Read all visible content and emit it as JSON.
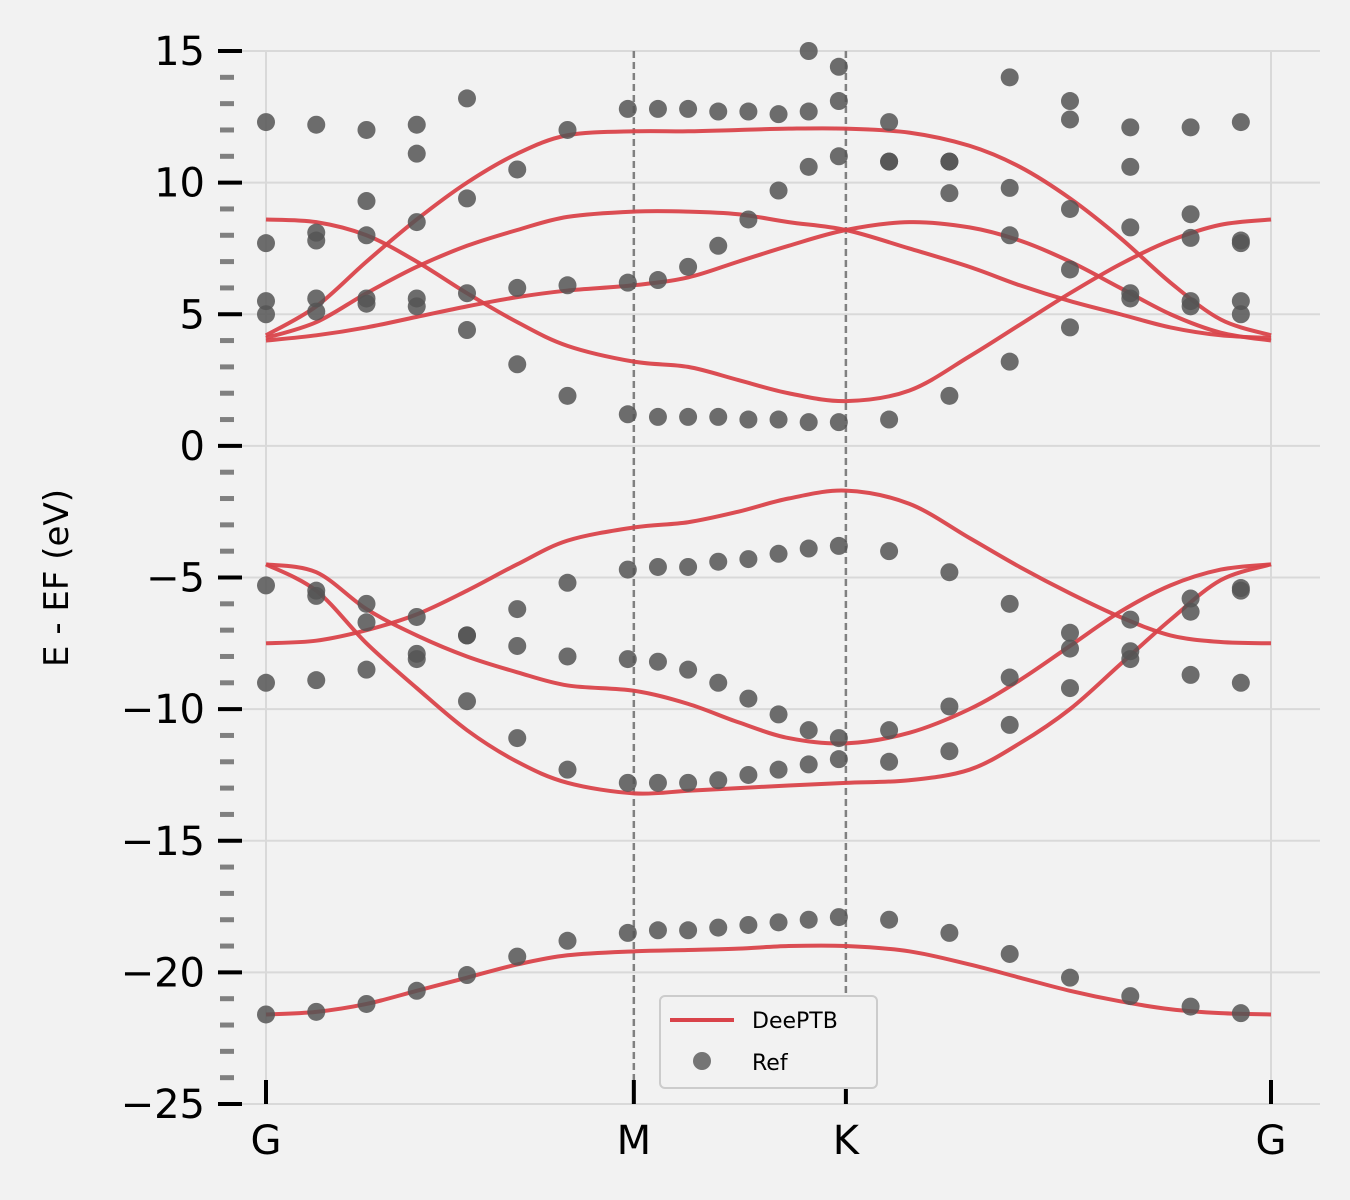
{
  "chart_data": {
    "type": "line",
    "ylabel": "E - EF (eV)",
    "ylim": [
      -25,
      15
    ],
    "yticks": [
      15,
      10,
      5,
      0,
      -5,
      -10,
      -15,
      -20,
      -25
    ],
    "ytick_labels": [
      "15",
      "10",
      "5",
      "0",
      "−5",
      "−10",
      "−15",
      "−20",
      "−25"
    ],
    "xlim": [
      0,
      1
    ],
    "xticks": [
      {
        "label": "G",
        "x": 0.0
      },
      {
        "label": "M",
        "x": 0.366
      },
      {
        "label": "K",
        "x": 0.577
      },
      {
        "label": "G",
        "x": 1.0
      }
    ],
    "high_symmetry_lines_at": [
      0.366,
      0.577
    ],
    "grid": true,
    "legend": {
      "placement": "lower center",
      "entries": [
        "DeePTB",
        "Ref"
      ]
    },
    "colors": {
      "deeptb": "#d9434a",
      "ref": "#555555",
      "background": "#f2f2f2",
      "grid": "#d9d9d9",
      "vline": "#808080"
    },
    "series": [
      {
        "name": "DeePTB",
        "kind": "line",
        "bands": [
          {
            "x": [
              0,
              0.05,
              0.1,
              0.15,
              0.2,
              0.25,
              0.3,
              0.366,
              0.42,
              0.47,
              0.52,
              0.577,
              0.64,
              0.7,
              0.75,
              0.8,
              0.85,
              0.9,
              0.95,
              1.0
            ],
            "y": [
              -21.6,
              -21.5,
              -21.2,
              -20.7,
              -20.2,
              -19.7,
              -19.35,
              -19.2,
              -19.15,
              -19.1,
              -19.0,
              -19.0,
              -19.2,
              -19.7,
              -20.2,
              -20.7,
              -21.1,
              -21.4,
              -21.55,
              -21.6
            ]
          },
          {
            "x": [
              0,
              0.05,
              0.1,
              0.15,
              0.2,
              0.25,
              0.3,
              0.366,
              0.42,
              0.47,
              0.52,
              0.577,
              0.64,
              0.7,
              0.75,
              0.8,
              0.85,
              0.9,
              0.95,
              1.0
            ],
            "y": [
              -4.5,
              -5.5,
              -7.5,
              -9.2,
              -10.8,
              -12.0,
              -12.8,
              -13.2,
              -13.1,
              -13.0,
              -12.9,
              -12.8,
              -12.7,
              -12.3,
              -11.3,
              -10.0,
              -8.3,
              -6.6,
              -5.1,
              -4.5
            ]
          },
          {
            "x": [
              0,
              0.05,
              0.1,
              0.15,
              0.2,
              0.25,
              0.3,
              0.366,
              0.42,
              0.47,
              0.52,
              0.577,
              0.64,
              0.7,
              0.75,
              0.8,
              0.85,
              0.9,
              0.95,
              1.0
            ],
            "y": [
              -4.5,
              -4.8,
              -6.2,
              -7.2,
              -8.0,
              -8.6,
              -9.1,
              -9.3,
              -9.8,
              -10.5,
              -11.1,
              -11.3,
              -10.9,
              -10.0,
              -8.9,
              -7.6,
              -6.3,
              -5.3,
              -4.7,
              -4.5
            ]
          },
          {
            "x": [
              0,
              0.05,
              0.1,
              0.15,
              0.2,
              0.25,
              0.3,
              0.366,
              0.42,
              0.47,
              0.52,
              0.577,
              0.64,
              0.7,
              0.75,
              0.8,
              0.85,
              0.9,
              0.95,
              1.0
            ],
            "y": [
              -7.5,
              -7.4,
              -7.0,
              -6.4,
              -5.5,
              -4.5,
              -3.6,
              -3.1,
              -2.9,
              -2.5,
              -2.0,
              -1.7,
              -2.2,
              -3.5,
              -4.6,
              -5.6,
              -6.5,
              -7.2,
              -7.45,
              -7.5
            ]
          },
          {
            "x": [
              0,
              0.05,
              0.1,
              0.15,
              0.2,
              0.25,
              0.3,
              0.366,
              0.42,
              0.47,
              0.52,
              0.577,
              0.64,
              0.7,
              0.75,
              0.8,
              0.85,
              0.9,
              0.95,
              1.0
            ],
            "y": [
              8.6,
              8.5,
              8.0,
              7.0,
              5.8,
              4.7,
              3.8,
              3.2,
              3.0,
              2.5,
              2.0,
              1.7,
              2.1,
              3.4,
              4.6,
              5.8,
              6.9,
              7.8,
              8.4,
              8.6
            ]
          },
          {
            "x": [
              0,
              0.05,
              0.1,
              0.15,
              0.2,
              0.25,
              0.3,
              0.366,
              0.42,
              0.47,
              0.52,
              0.577,
              0.64,
              0.7,
              0.75,
              0.8,
              0.85,
              0.9,
              0.95,
              1.0
            ],
            "y": [
              4.0,
              4.2,
              4.5,
              4.9,
              5.3,
              5.65,
              5.9,
              6.1,
              6.4,
              7.0,
              7.6,
              8.2,
              8.5,
              8.3,
              7.8,
              7.0,
              6.0,
              5.0,
              4.3,
              4.0
            ]
          },
          {
            "x": [
              0,
              0.05,
              0.1,
              0.15,
              0.2,
              0.25,
              0.3,
              0.366,
              0.42,
              0.47,
              0.52,
              0.577,
              0.64,
              0.7,
              0.75,
              0.8,
              0.85,
              0.9,
              0.95,
              1.0
            ],
            "y": [
              4.1,
              4.7,
              5.8,
              6.8,
              7.6,
              8.2,
              8.7,
              8.9,
              8.9,
              8.8,
              8.5,
              8.2,
              7.5,
              6.8,
              6.1,
              5.5,
              5.0,
              4.5,
              4.2,
              4.1
            ]
          },
          {
            "x": [
              0,
              0.05,
              0.1,
              0.15,
              0.2,
              0.25,
              0.3,
              0.366,
              0.42,
              0.47,
              0.52,
              0.577,
              0.64,
              0.7,
              0.75,
              0.8,
              0.85,
              0.9,
              0.95,
              1.0
            ],
            "y": [
              4.2,
              5.3,
              7.0,
              8.6,
              10.0,
              11.1,
              11.8,
              11.95,
              11.95,
              12.0,
              12.05,
              12.05,
              11.9,
              11.4,
              10.6,
              9.4,
              7.9,
              6.2,
              4.8,
              4.2
            ]
          }
        ]
      },
      {
        "name": "Ref",
        "kind": "scatter",
        "points": [
          [
            0.0,
            -21.6
          ],
          [
            0.05,
            -21.5
          ],
          [
            0.1,
            -21.2
          ],
          [
            0.15,
            -20.7
          ],
          [
            0.2,
            -20.1
          ],
          [
            0.25,
            -19.4
          ],
          [
            0.3,
            -18.8
          ],
          [
            0.36,
            -18.5
          ],
          [
            0.39,
            -18.4
          ],
          [
            0.42,
            -18.4
          ],
          [
            0.45,
            -18.3
          ],
          [
            0.48,
            -18.2
          ],
          [
            0.51,
            -18.1
          ],
          [
            0.54,
            -18.0
          ],
          [
            0.57,
            -17.9
          ],
          [
            0.62,
            -18.0
          ],
          [
            0.68,
            -18.5
          ],
          [
            0.74,
            -19.3
          ],
          [
            0.8,
            -20.2
          ],
          [
            0.86,
            -20.9
          ],
          [
            0.92,
            -21.3
          ],
          [
            0.97,
            -21.55
          ],
          [
            0.0,
            -9.0
          ],
          [
            0.05,
            -8.9
          ],
          [
            0.1,
            -8.5
          ],
          [
            0.15,
            -7.9
          ],
          [
            0.2,
            -7.2
          ],
          [
            0.25,
            -6.2
          ],
          [
            0.3,
            -5.2
          ],
          [
            0.36,
            -4.7
          ],
          [
            0.39,
            -4.6
          ],
          [
            0.42,
            -4.6
          ],
          [
            0.45,
            -4.4
          ],
          [
            0.48,
            -4.3
          ],
          [
            0.51,
            -4.1
          ],
          [
            0.54,
            -3.9
          ],
          [
            0.57,
            -3.8
          ],
          [
            0.62,
            -4.0
          ],
          [
            0.68,
            -4.8
          ],
          [
            0.74,
            -6.0
          ],
          [
            0.8,
            -7.1
          ],
          [
            0.86,
            -8.1
          ],
          [
            0.92,
            -8.7
          ],
          [
            0.97,
            -9.0
          ],
          [
            0.0,
            -5.3
          ],
          [
            0.05,
            -5.5
          ],
          [
            0.1,
            -6.0
          ],
          [
            0.15,
            -6.5
          ],
          [
            0.2,
            -7.2
          ],
          [
            0.25,
            -7.6
          ],
          [
            0.3,
            -8.0
          ],
          [
            0.36,
            -8.1
          ],
          [
            0.39,
            -8.2
          ],
          [
            0.42,
            -8.5
          ],
          [
            0.45,
            -9.0
          ],
          [
            0.48,
            -9.6
          ],
          [
            0.51,
            -10.2
          ],
          [
            0.54,
            -10.8
          ],
          [
            0.57,
            -11.1
          ],
          [
            0.62,
            -10.8
          ],
          [
            0.68,
            -9.9
          ],
          [
            0.74,
            -8.8
          ],
          [
            0.8,
            -7.7
          ],
          [
            0.86,
            -6.6
          ],
          [
            0.92,
            -5.8
          ],
          [
            0.97,
            -5.4
          ],
          [
            0.05,
            -5.7
          ],
          [
            0.1,
            -6.7
          ],
          [
            0.15,
            -8.1
          ],
          [
            0.2,
            -9.7
          ],
          [
            0.25,
            -11.1
          ],
          [
            0.3,
            -12.3
          ],
          [
            0.36,
            -12.8
          ],
          [
            0.39,
            -12.8
          ],
          [
            0.42,
            -12.8
          ],
          [
            0.45,
            -12.7
          ],
          [
            0.48,
            -12.5
          ],
          [
            0.51,
            -12.3
          ],
          [
            0.54,
            -12.1
          ],
          [
            0.57,
            -11.9
          ],
          [
            0.62,
            -12.0
          ],
          [
            0.68,
            -11.6
          ],
          [
            0.74,
            -10.6
          ],
          [
            0.8,
            -9.2
          ],
          [
            0.86,
            -7.8
          ],
          [
            0.92,
            -6.3
          ],
          [
            0.97,
            -5.5
          ],
          [
            0.36,
            1.2
          ],
          [
            0.39,
            1.1
          ],
          [
            0.42,
            1.1
          ],
          [
            0.45,
            1.1
          ],
          [
            0.48,
            1.0
          ],
          [
            0.51,
            1.0
          ],
          [
            0.54,
            0.9
          ],
          [
            0.57,
            0.9
          ],
          [
            0.62,
            1.0
          ],
          [
            0.68,
            1.9
          ],
          [
            0.74,
            3.2
          ],
          [
            0.8,
            4.5
          ],
          [
            0.86,
            5.6
          ],
          [
            0.92,
            5.5
          ],
          [
            0.97,
            5.0
          ],
          [
            0.0,
            5.0
          ],
          [
            0.05,
            5.1
          ],
          [
            0.1,
            5.4
          ],
          [
            0.15,
            5.3
          ],
          [
            0.2,
            4.4
          ],
          [
            0.25,
            3.1
          ],
          [
            0.3,
            1.9
          ],
          [
            0.0,
            5.5
          ],
          [
            0.05,
            5.6
          ],
          [
            0.1,
            5.6
          ],
          [
            0.15,
            5.6
          ],
          [
            0.2,
            5.8
          ],
          [
            0.25,
            6.0
          ],
          [
            0.3,
            6.1
          ],
          [
            0.36,
            6.2
          ],
          [
            0.39,
            6.3
          ],
          [
            0.42,
            6.8
          ],
          [
            0.45,
            7.6
          ],
          [
            0.48,
            8.6
          ],
          [
            0.51,
            9.7
          ],
          [
            0.54,
            10.6
          ],
          [
            0.57,
            11.0
          ],
          [
            0.62,
            10.8
          ],
          [
            0.68,
            9.6
          ],
          [
            0.74,
            8.0
          ],
          [
            0.8,
            6.7
          ],
          [
            0.86,
            5.8
          ],
          [
            0.92,
            5.3
          ],
          [
            0.97,
            5.5
          ],
          [
            0.0,
            7.7
          ],
          [
            0.05,
            7.8
          ],
          [
            0.1,
            8.0
          ],
          [
            0.15,
            8.5
          ],
          [
            0.2,
            9.4
          ],
          [
            0.25,
            10.5
          ],
          [
            0.3,
            12.0
          ],
          [
            0.36,
            12.8
          ],
          [
            0.39,
            12.8
          ],
          [
            0.42,
            12.8
          ],
          [
            0.45,
            12.7
          ],
          [
            0.48,
            12.7
          ],
          [
            0.51,
            12.6
          ],
          [
            0.54,
            12.7
          ],
          [
            0.57,
            13.1
          ],
          [
            0.62,
            12.3
          ],
          [
            0.68,
            10.8
          ],
          [
            0.74,
            9.8
          ],
          [
            0.8,
            9.0
          ],
          [
            0.86,
            8.3
          ],
          [
            0.92,
            7.9
          ],
          [
            0.97,
            7.7
          ],
          [
            0.0,
            12.3
          ],
          [
            0.05,
            12.2
          ],
          [
            0.1,
            12.0
          ],
          [
            0.15,
            11.1
          ],
          [
            0.2,
            13.2
          ],
          [
            0.15,
            12.2
          ],
          [
            0.1,
            9.3
          ],
          [
            0.05,
            8.1
          ],
          [
            0.57,
            14.4
          ],
          [
            0.54,
            15.0
          ],
          [
            0.62,
            10.8
          ],
          [
            0.68,
            10.8
          ],
          [
            0.74,
            14.0
          ],
          [
            0.8,
            12.4
          ],
          [
            0.8,
            13.1
          ],
          [
            0.86,
            10.6
          ],
          [
            0.86,
            12.1
          ],
          [
            0.92,
            12.1
          ],
          [
            0.92,
            8.8
          ],
          [
            0.97,
            12.3
          ],
          [
            0.97,
            7.8
          ]
        ]
      }
    ]
  }
}
